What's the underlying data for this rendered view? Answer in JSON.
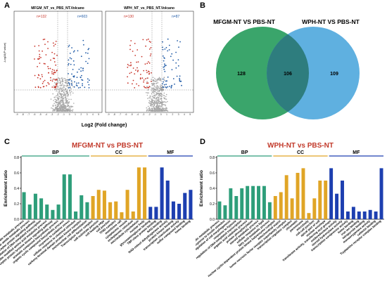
{
  "panels": {
    "a": "A",
    "b": "B",
    "c": "C",
    "d": "D"
  },
  "volcano": {
    "xlabel": "Log2 (Fold change)",
    "ylabel": "-Log10(P value)",
    "plots": [
      {
        "title": "MFGM_NT_vs_PBS_NT.Volcano",
        "down_label": "n=132",
        "up_label": "n=603"
      },
      {
        "title": "WPH_NT_vs_PBS_NT.Volcano",
        "down_label": "n=130",
        "up_label": "n=87"
      }
    ],
    "x_ticks": [
      "-9",
      "-8",
      "-7",
      "-6",
      "-5",
      "-4",
      "-3",
      "-2",
      "-1",
      "0",
      "1",
      "2",
      "3",
      "4",
      "5"
    ],
    "y_ticks": [
      "1",
      "2",
      "3",
      "4",
      "5",
      "6",
      "7"
    ],
    "colors": {
      "down": "#c8352b",
      "up": "#1f5aa6",
      "ns": "#a8a8a8"
    }
  },
  "venn": {
    "left_label": "MFGM-NT VS PBS-NT",
    "right_label": "WPH-NT VS PBS-NT",
    "left_only": "128",
    "overlap": "106",
    "right_only": "109",
    "colors": {
      "left": "#3aa56b",
      "right": "#5fb0e0",
      "overlap": "#2e7d7e"
    }
  },
  "chart_data": [
    {
      "type": "bar",
      "title": "MFGM-NT vs PBS-NT",
      "ylabel": "Enrichment ratio",
      "ylim": [
        0,
        0.8
      ],
      "yticks": [
        "0.0",
        "0.2",
        "0.4",
        "0.6",
        "0.8"
      ],
      "groups": [
        {
          "name": "BP",
          "color": "#2e9e7a",
          "start": 0,
          "end": 11
        },
        {
          "name": "CC",
          "color": "#e0a526",
          "start": 12,
          "end": 21
        },
        {
          "name": "MF",
          "color": "#1d3fb0",
          "start": 22,
          "end": 29
        }
      ],
      "categories": [
        "glucosinolate metabolic process",
        "cellular amide metabolic process",
        "enzyme linked receptor protein signaling pathway",
        "regulation of DNA-templated transcription",
        "cellular modified amino acid metabolic process",
        "transmembrane receptor protein tyrosine kinase signaling pathway",
        "aromatic compound biosynthetic process",
        "organic cyclic compound biosynthetic process",
        "response to oxidative stress",
        "cellular response to chemical stimulus",
        "carboxy-terminal domain protein kinase complex",
        "mononuclear cell differentiation",
        "Transcription factor complex",
        "cell-substrate junction",
        "cell leading edge",
        "cell junction",
        "TFIID complex",
        "membrane raft",
        "cytoplasmic vesicle",
        "endoplasmic reticulum",
        "microtubule cytoskeleton",
        "nuclear body",
        "glycosaminoglycan binding",
        "TBP-class protein binding",
        "NAD-binding",
        "NAD-retinol dehydrogenase activity",
        "protein kinase binding",
        "transcription coactivator activity",
        "sulfur compound binding",
        "heme binding"
      ],
      "values": [
        0.35,
        0.19,
        0.33,
        0.27,
        0.19,
        0.12,
        0.19,
        0.58,
        0.58,
        0.1,
        0.31,
        0.22,
        0.3,
        0.38,
        0.37,
        0.22,
        0.23,
        0.09,
        0.38,
        0.1,
        0.67,
        0.67,
        0.16,
        0.16,
        0.67,
        0.5,
        0.23,
        0.2,
        0.34,
        0.38
      ]
    },
    {
      "type": "bar",
      "title": "WPH-NT vs PBS-NT",
      "ylabel": "Enrichment ratio",
      "ylim": [
        0,
        0.8
      ],
      "yticks": [
        "0.0",
        "0.2",
        "0.4",
        "0.6",
        "0.8"
      ],
      "groups": [
        {
          "name": "BP",
          "color": "#2e9e7a",
          "start": 0,
          "end": 9
        },
        {
          "name": "CC",
          "color": "#e0a526",
          "start": 10,
          "end": 19
        },
        {
          "name": "MF",
          "color": "#1d3fb0",
          "start": 20,
          "end": 29
        }
      ],
      "categories": [
        "xenobiotic metabolic process",
        "cellular response to insulin stimulus",
        "positive regulation of cell morphogenesis",
        "response to hypoxia",
        "regulation of DNA-templated transcription",
        "organic acid catabolic process",
        "protein phosphorylation",
        "steroid metabolic process",
        "cellular response to lipid",
        "fatty acid metabolic process",
        "nuclear cyclin-dependent protein kinase holoenzyme complex",
        "mitochondrial matrix",
        "tumor necrosis factor receptor superfamily complex",
        "transcription regulator complex",
        "chromatin",
        "peroxisome",
        "microbody",
        "cell-cell junction",
        "apical part of cell",
        "nuclear envelope",
        "transferase activity, transferring acyl groups",
        "oxidoreductase activity",
        "steroid hydroxylase activity",
        "transcription corepressor activity",
        "heme binding",
        "iron ion binding",
        "tetrapyrrole binding",
        "monooxygenase activity",
        "cofactor binding",
        "Tryptamine receptor complex binding"
      ],
      "values": [
        0.23,
        0.18,
        0.4,
        0.3,
        0.4,
        0.43,
        0.43,
        0.43,
        0.43,
        0.22,
        0.3,
        0.35,
        0.57,
        0.27,
        0.6,
        0.66,
        0.08,
        0.27,
        0.5,
        0.5,
        0.66,
        0.33,
        0.5,
        0.1,
        0.16,
        0.1,
        0.1,
        0.12,
        0.1,
        0.66
      ]
    }
  ]
}
